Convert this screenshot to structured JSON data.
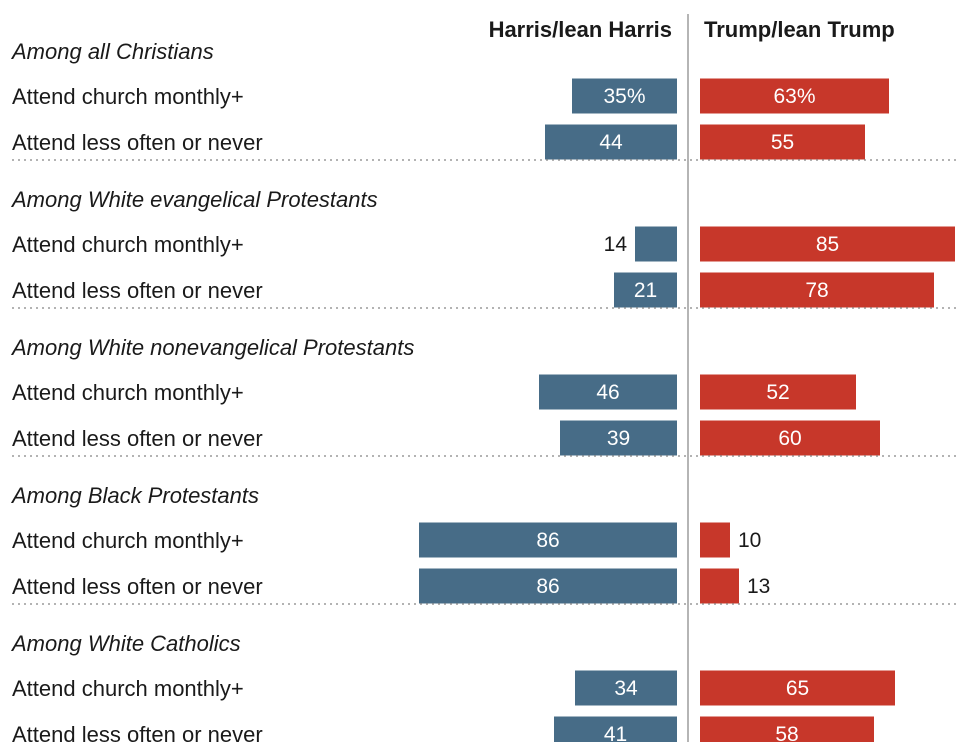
{
  "chart_data": {
    "type": "bar",
    "orientation": "horizontal-diverging",
    "legend": {
      "left": "Harris/lean Harris",
      "right": "Trump/lean Trump"
    },
    "colors": {
      "harris": "#476C87",
      "trump": "#C7372A"
    },
    "groups": [
      {
        "label": "Among all Christians",
        "rows": [
          {
            "label": "Attend church monthly+",
            "harris": 35,
            "trump": 63,
            "harris_label": "35%",
            "trump_label": "63%"
          },
          {
            "label": "Attend less often or never",
            "harris": 44,
            "trump": 55,
            "harris_label": "44",
            "trump_label": "55"
          }
        ]
      },
      {
        "label": "Among White evangelical Protestants",
        "rows": [
          {
            "label": "Attend church monthly+",
            "harris": 14,
            "trump": 85,
            "harris_label": "14",
            "trump_label": "85"
          },
          {
            "label": "Attend less often or never",
            "harris": 21,
            "trump": 78,
            "harris_label": "21",
            "trump_label": "78"
          }
        ]
      },
      {
        "label": "Among White nonevangelical Protestants",
        "rows": [
          {
            "label": "Attend church monthly+",
            "harris": 46,
            "trump": 52,
            "harris_label": "46",
            "trump_label": "52"
          },
          {
            "label": "Attend less often or never",
            "harris": 39,
            "trump": 60,
            "harris_label": "39",
            "trump_label": "60"
          }
        ]
      },
      {
        "label": "Among Black Protestants",
        "rows": [
          {
            "label": "Attend church monthly+",
            "harris": 86,
            "trump": 10,
            "harris_label": "86",
            "trump_label": "10"
          },
          {
            "label": "Attend less often or never",
            "harris": 86,
            "trump": 13,
            "harris_label": "86",
            "trump_label": "13"
          }
        ]
      },
      {
        "label": "Among White Catholics",
        "rows": [
          {
            "label": "Attend church monthly+",
            "harris": 34,
            "trump": 65,
            "harris_label": "34",
            "trump_label": "65"
          },
          {
            "label": "Attend less often or never",
            "harris": 41,
            "trump": 58,
            "harris_label": "41",
            "trump_label": "58"
          }
        ]
      }
    ]
  }
}
